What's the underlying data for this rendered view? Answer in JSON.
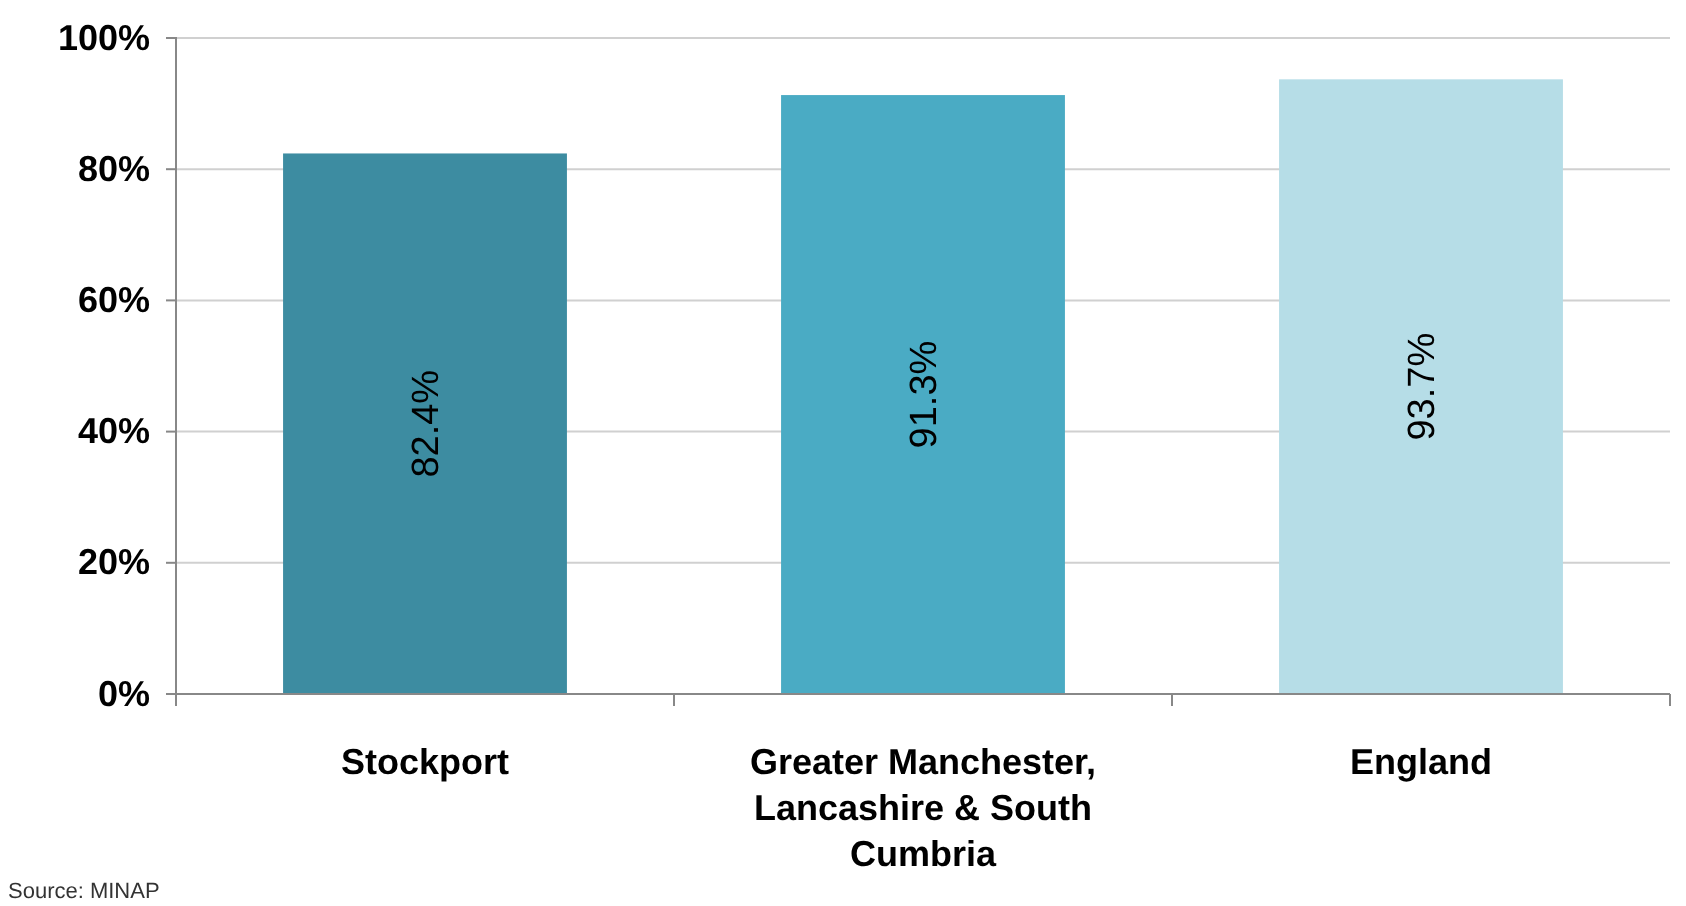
{
  "chart_data": {
    "type": "bar",
    "categories": [
      "Stockport",
      "Greater Manchester, Lancashire & South Cumbria",
      "England"
    ],
    "values": [
      82.4,
      91.3,
      93.7
    ],
    "colors": [
      "#3d8ca1",
      "#4aabc4",
      "#b6dde7"
    ],
    "value_labels": [
      "82.4%",
      "91.3%",
      "93.7%"
    ],
    "ylim": [
      0,
      100
    ],
    "yticks": [
      {
        "value": 0,
        "label": "0%"
      },
      {
        "value": 20,
        "label": "20%"
      },
      {
        "value": 40,
        "label": "40%"
      },
      {
        "value": 60,
        "label": "60%"
      },
      {
        "value": 80,
        "label": "80%"
      },
      {
        "value": 100,
        "label": "100%"
      }
    ],
    "grid": "y",
    "annotations": [
      "Source: MINAP"
    ]
  }
}
